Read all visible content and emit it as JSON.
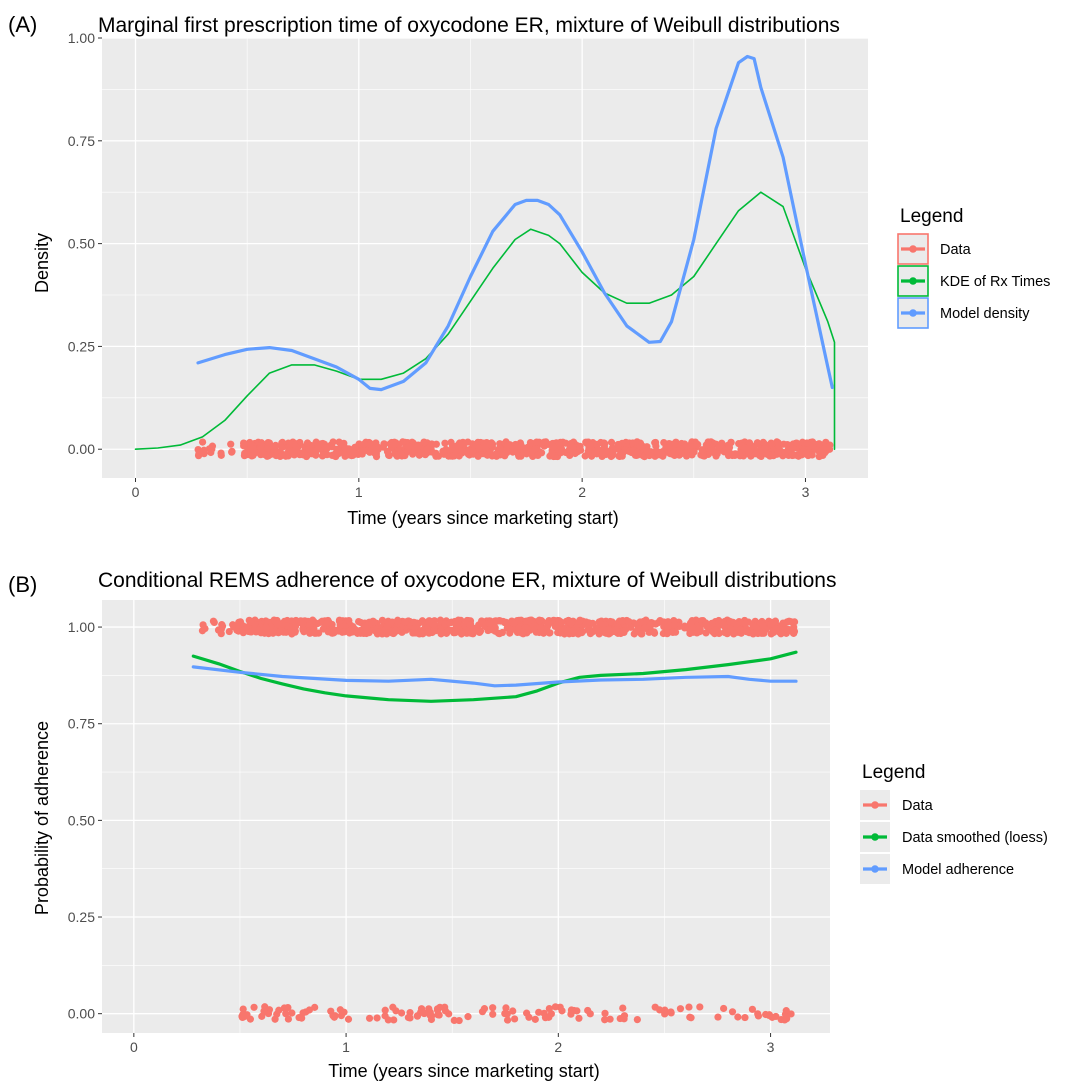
{
  "colors": {
    "data": "#F8766D",
    "kde": "#00BA38",
    "model": "#619CFF",
    "panel_bg": "#EBEBEB",
    "grid": "#FFFFFF"
  },
  "chart_data": [
    {
      "panel_tag": "(A)",
      "type": "line",
      "title": "Marginal first prescription time of oxycodone ER, mixture of Weibull distributions",
      "xlabel": "Time (years since marketing start)",
      "ylabel": "Density",
      "xlim": [
        -0.15,
        3.28
      ],
      "ylim": [
        -0.07,
        1.0
      ],
      "xticks": [
        0,
        1,
        2,
        3
      ],
      "xtick_labels": [
        "0",
        "1",
        "2",
        "3"
      ],
      "yticks": [
        0.0,
        0.25,
        0.5,
        0.75,
        1.0
      ],
      "ytick_labels": [
        "0.00",
        "0.25",
        "0.50",
        "0.75",
        "1.00"
      ],
      "grid": true,
      "legend": {
        "title": "Legend",
        "position": "right",
        "entries": [
          {
            "label": "Data",
            "color": "#F8766D",
            "boxed": true
          },
          {
            "label": "KDE of Rx Times",
            "color": "#00BA38",
            "boxed": true
          },
          {
            "label": "Model density",
            "color": "#619CFF",
            "boxed": true
          }
        ]
      },
      "series": [
        {
          "name": "KDE of Rx Times",
          "kind": "line",
          "color": "#00BA38",
          "x": [
            0,
            0.1,
            0.2,
            0.3,
            0.4,
            0.5,
            0.6,
            0.7,
            0.8,
            0.9,
            1.0,
            1.1,
            1.2,
            1.3,
            1.4,
            1.5,
            1.6,
            1.7,
            1.77,
            1.85,
            1.9,
            2.0,
            2.1,
            2.2,
            2.3,
            2.4,
            2.5,
            2.6,
            2.7,
            2.8,
            2.9,
            3.0,
            3.1,
            3.13,
            3.13
          ],
          "y": [
            0,
            0.003,
            0.01,
            0.03,
            0.07,
            0.13,
            0.185,
            0.205,
            0.205,
            0.19,
            0.17,
            0.17,
            0.185,
            0.22,
            0.28,
            0.36,
            0.44,
            0.51,
            0.535,
            0.52,
            0.5,
            0.43,
            0.38,
            0.355,
            0.355,
            0.375,
            0.42,
            0.5,
            0.58,
            0.625,
            0.59,
            0.44,
            0.31,
            0.26,
            0.0
          ]
        },
        {
          "name": "Model density",
          "kind": "line",
          "color": "#619CFF",
          "x": [
            0.28,
            0.4,
            0.5,
            0.6,
            0.7,
            0.8,
            0.9,
            1.0,
            1.05,
            1.1,
            1.2,
            1.3,
            1.4,
            1.5,
            1.6,
            1.7,
            1.75,
            1.8,
            1.85,
            1.9,
            2.0,
            2.1,
            2.2,
            2.3,
            2.35,
            2.4,
            2.5,
            2.6,
            2.7,
            2.74,
            2.77,
            2.8,
            2.9,
            3.0,
            3.1,
            3.12
          ],
          "y": [
            0.21,
            0.23,
            0.243,
            0.247,
            0.24,
            0.22,
            0.2,
            0.17,
            0.148,
            0.145,
            0.165,
            0.21,
            0.3,
            0.42,
            0.53,
            0.595,
            0.605,
            0.605,
            0.595,
            0.57,
            0.48,
            0.38,
            0.3,
            0.26,
            0.262,
            0.31,
            0.51,
            0.78,
            0.94,
            0.955,
            0.95,
            0.88,
            0.71,
            0.45,
            0.2,
            0.15
          ]
        },
        {
          "name": "Data",
          "kind": "jitter",
          "color": "#F8766D",
          "y_center": 0,
          "jitter": 0.018,
          "x_min": 0.28,
          "x_max": 3.12,
          "density": "dense"
        }
      ]
    },
    {
      "panel_tag": "(B)",
      "type": "line",
      "title": "Conditional REMS adherence of oxycodone ER, mixture of Weibull distributions",
      "xlabel": "Time (years since marketing start)",
      "ylabel": "Probability of adherence",
      "xlim": [
        -0.15,
        3.28
      ],
      "ylim": [
        -0.05,
        1.07
      ],
      "xticks": [
        0,
        1,
        2,
        3
      ],
      "xtick_labels": [
        "0",
        "1",
        "2",
        "3"
      ],
      "yticks": [
        0.0,
        0.25,
        0.5,
        0.75,
        1.0
      ],
      "ytick_labels": [
        "0.00",
        "0.25",
        "0.50",
        "0.75",
        "1.00"
      ],
      "grid": true,
      "legend": {
        "title": "Legend",
        "position": "right",
        "entries": [
          {
            "label": "Data",
            "color": "#F8766D",
            "boxed": false
          },
          {
            "label": "Data smoothed (loess)",
            "color": "#00BA38",
            "boxed": false
          },
          {
            "label": "Model adherence",
            "color": "#619CFF",
            "boxed": false
          }
        ]
      },
      "series": [
        {
          "name": "Data smoothed (loess)",
          "kind": "line",
          "color": "#00BA38",
          "x": [
            0.28,
            0.4,
            0.5,
            0.6,
            0.7,
            0.8,
            0.9,
            1.0,
            1.2,
            1.4,
            1.6,
            1.8,
            1.9,
            2.0,
            2.1,
            2.2,
            2.4,
            2.6,
            2.8,
            3.0,
            3.12
          ],
          "y": [
            0.925,
            0.905,
            0.885,
            0.867,
            0.853,
            0.84,
            0.83,
            0.822,
            0.812,
            0.808,
            0.812,
            0.82,
            0.835,
            0.855,
            0.87,
            0.875,
            0.88,
            0.89,
            0.903,
            0.918,
            0.935
          ]
        },
        {
          "name": "Model adherence",
          "kind": "line",
          "color": "#619CFF",
          "x": [
            0.28,
            0.5,
            0.7,
            1.0,
            1.2,
            1.4,
            1.6,
            1.7,
            1.8,
            2.0,
            2.2,
            2.4,
            2.6,
            2.8,
            2.9,
            3.0,
            3.12
          ],
          "y": [
            0.897,
            0.883,
            0.872,
            0.862,
            0.86,
            0.865,
            0.855,
            0.848,
            0.85,
            0.858,
            0.863,
            0.865,
            0.87,
            0.872,
            0.865,
            0.86,
            0.86
          ]
        },
        {
          "name": "Data",
          "kind": "jitter",
          "color": "#F8766D",
          "y_center": 1,
          "jitter": 0.018,
          "x_min": 0.28,
          "x_max": 3.12,
          "density": "dense"
        },
        {
          "name": "Data",
          "kind": "jitter",
          "color": "#F8766D",
          "y_center": 0,
          "jitter": 0.018,
          "x_min": 0.5,
          "x_max": 3.12,
          "density": "sparse"
        }
      ]
    }
  ]
}
